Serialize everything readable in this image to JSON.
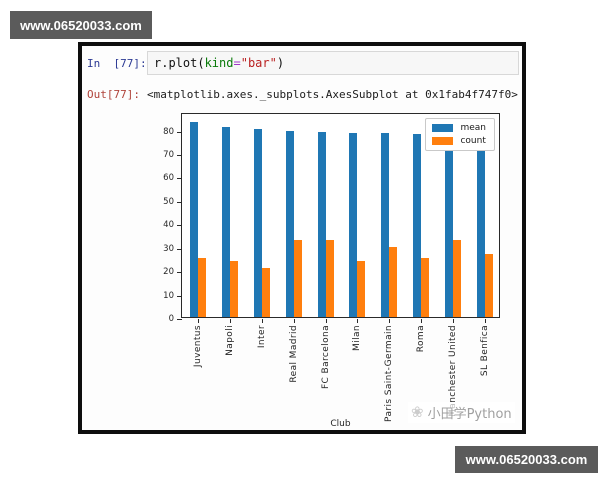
{
  "watermarks": {
    "top": "www.06520033.com",
    "bottom": "www.06520033.com",
    "chart_logo": "flower-logo",
    "chart_text": "小田学Python"
  },
  "notebook": {
    "in_prompt": "In  [77]:",
    "code": {
      "prefix": "r.plot(",
      "kwarg": "kind",
      "op": "=",
      "string": "\"bar\"",
      "suffix": ")"
    },
    "out_prompt": "Out[77]:",
    "out_value": "<matplotlib.axes._subplots.AxesSubplot at 0x1fab4f747f0>"
  },
  "chart_data": {
    "type": "bar",
    "title": "",
    "xlabel": "Club",
    "ylabel": "",
    "categories": [
      "Juventus",
      "Napoli",
      "Inter",
      "Real Madrid",
      "FC Barcelona",
      "Milan",
      "Paris Saint-Germain",
      "Roma",
      "Manchester United",
      "SL Benfica"
    ],
    "series": [
      {
        "name": "mean",
        "color": "#1f77b4",
        "values": [
          83.3,
          81.0,
          80.3,
          79.5,
          79.0,
          78.6,
          78.4,
          78.2,
          78.0,
          77.9
        ]
      },
      {
        "name": "count",
        "color": "#ff7f0e",
        "values": [
          25,
          24,
          21,
          33,
          33,
          24,
          30,
          25,
          33,
          27
        ]
      }
    ],
    "yticks": [
      0,
      10,
      20,
      30,
      40,
      50,
      60,
      70,
      80
    ],
    "ylim": [
      0,
      87.5
    ],
    "grid": false,
    "legend_position": "upper right"
  },
  "colors": {
    "banner_bg": "#5b5b5b",
    "mean_bar": "#1f77b4",
    "count_bar": "#ff7f0e",
    "in_prompt": "#2c3a94",
    "out_prompt": "#b0433a"
  }
}
